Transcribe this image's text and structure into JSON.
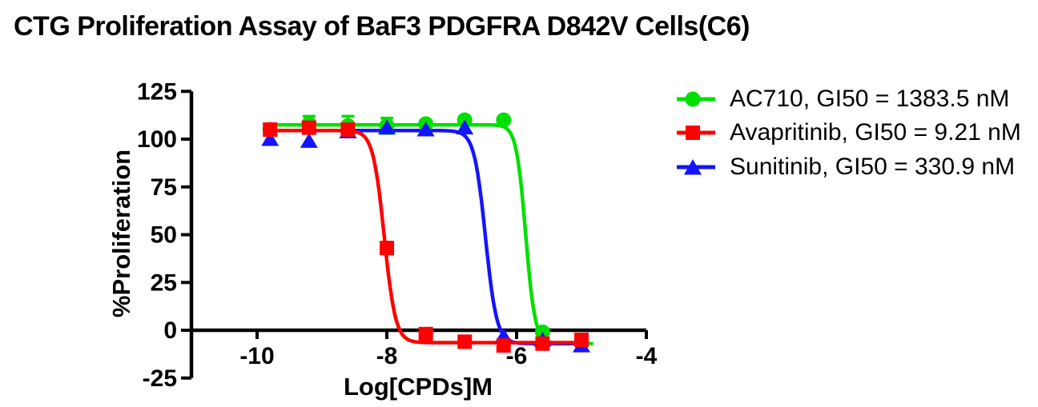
{
  "title": "CTG Proliferation Assay of BaF3 PDGFRA D842V Cells(C6)",
  "chart_data": {
    "type": "line",
    "subtype": "dose-response-sigmoid-4PL",
    "title": "CTG Proliferation Assay of BaF3 PDGFRA D842V Cells(C6)",
    "xlabel": "Log[CPDs]M",
    "ylabel": "%Proliferation",
    "xlim": [
      -11.05,
      -4
    ],
    "ylim": [
      -25,
      125
    ],
    "x_ticks": [
      -10,
      -8,
      -6,
      -4
    ],
    "y_ticks": [
      125,
      100,
      75,
      50,
      25,
      0,
      -25
    ],
    "grid": false,
    "legend_position": "right",
    "x_log_concentration": [
      -9.8,
      -9.2,
      -8.6,
      -8.0,
      -7.4,
      -6.8,
      -6.2,
      -5.6,
      -5.0
    ],
    "series": [
      {
        "name": "AC710",
        "gi50_nM": 1383.5,
        "legend_label": "AC710, GI50 = 1383.5 nM",
        "color": "#00DF00",
        "marker": "circle",
        "values": [
          105,
          108,
          107,
          107,
          108,
          110,
          110,
          -1,
          -6
        ],
        "errors": [
          null,
          4,
          5,
          4,
          null,
          null,
          null,
          null,
          null
        ],
        "fit": {
          "top": 107.5,
          "bottom": -7,
          "log_ic50": -5.86,
          "hill": 6,
          "x_start": -9.82,
          "x_end": -4.82
        }
      },
      {
        "name": "Avapritinib",
        "gi50_nM": 9.21,
        "legend_label": "Avapritinib, GI50 = 9.21 nM",
        "color": "#FF0000",
        "marker": "square",
        "values": [
          105,
          106,
          105,
          43,
          -2,
          -6,
          -8,
          -7,
          -5
        ],
        "errors": [
          null,
          null,
          null,
          3,
          null,
          null,
          null,
          null,
          null
        ],
        "fit": {
          "top": 104.5,
          "bottom": -6.5,
          "log_ic50": -8.04,
          "hill": 5,
          "x_start": -9.82,
          "x_end": -4.93
        }
      },
      {
        "name": "Sunitinib",
        "gi50_nM": 330.9,
        "legend_label": "Sunitinib, GI50 = 330.9 nM",
        "color": "#1414FF",
        "marker": "triangle",
        "values": [
          100,
          99,
          104,
          106,
          105,
          106,
          -3,
          -5,
          -8
        ],
        "errors": [
          null,
          null,
          null,
          null,
          null,
          null,
          null,
          null,
          null
        ],
        "fit": {
          "top": 104.5,
          "bottom": -7,
          "log_ic50": -6.48,
          "hill": 5,
          "x_start": -9.82,
          "x_end": -4.93
        }
      }
    ]
  }
}
